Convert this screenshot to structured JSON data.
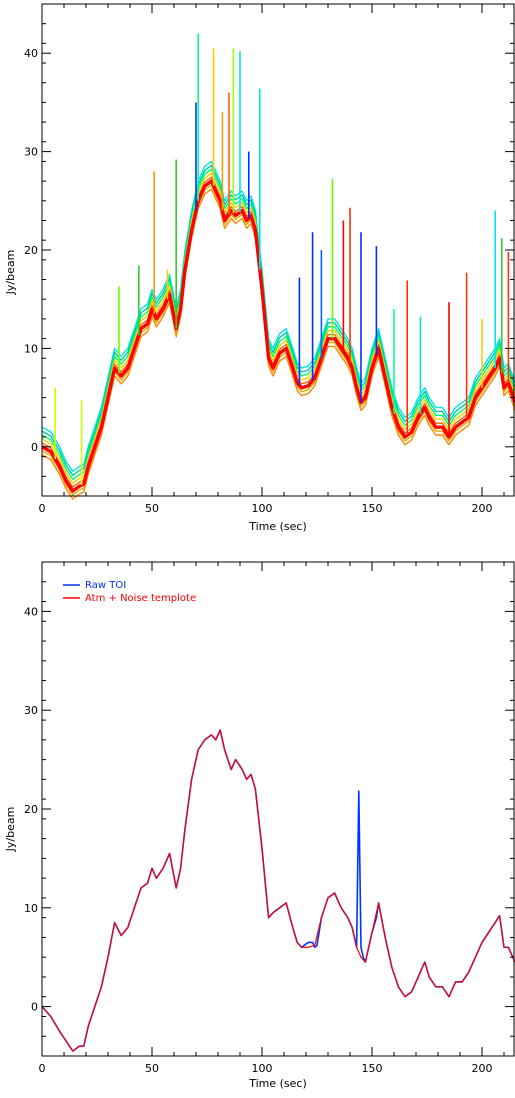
{
  "chart_data": [
    {
      "type": "line",
      "title": "",
      "xlabel": "Time (sec)",
      "ylabel": "Jy/beam",
      "xlim": [
        0,
        215
      ],
      "ylim": [
        -5,
        45
      ],
      "x_ticks": [
        0,
        50,
        100,
        150,
        200
      ],
      "y_ticks": [
        0,
        10,
        20,
        30,
        40
      ],
      "x_tick_labels": [
        "0",
        "50",
        "100",
        "150",
        "200"
      ],
      "y_tick_labels": [
        "0",
        "10",
        "20",
        "30",
        "40"
      ],
      "grid": false,
      "legend": "none",
      "baseline": [
        [
          0,
          0
        ],
        [
          4,
          -0.5
        ],
        [
          8,
          -2
        ],
        [
          11,
          -3.5
        ],
        [
          14,
          -4.5
        ],
        [
          17,
          -4
        ],
        [
          19,
          -3.8
        ],
        [
          21,
          -2
        ],
        [
          24,
          0
        ],
        [
          27,
          2
        ],
        [
          30,
          5
        ],
        [
          33,
          8
        ],
        [
          36,
          7.2
        ],
        [
          39,
          8
        ],
        [
          42,
          10
        ],
        [
          45,
          12
        ],
        [
          48,
          12.5
        ],
        [
          50,
          14
        ],
        [
          52,
          13
        ],
        [
          55,
          14
        ],
        [
          58,
          15.5
        ],
        [
          61,
          12
        ],
        [
          63,
          14
        ],
        [
          65,
          18
        ],
        [
          68,
          22
        ],
        [
          71,
          25
        ],
        [
          74,
          26.5
        ],
        [
          77,
          27
        ],
        [
          79,
          26
        ],
        [
          81,
          25
        ],
        [
          83,
          23
        ],
        [
          86,
          24
        ],
        [
          88,
          23.5
        ],
        [
          91,
          24
        ],
        [
          93,
          23
        ],
        [
          95,
          23.5
        ],
        [
          97,
          22
        ],
        [
          100,
          16
        ],
        [
          103,
          9
        ],
        [
          105,
          8
        ],
        [
          108,
          9.5
        ],
        [
          111,
          10
        ],
        [
          114,
          8
        ],
        [
          116,
          6.5
        ],
        [
          118,
          6
        ],
        [
          121,
          6.2
        ],
        [
          124,
          7
        ],
        [
          127,
          9
        ],
        [
          130,
          11
        ],
        [
          133,
          11
        ],
        [
          136,
          10
        ],
        [
          139,
          9
        ],
        [
          141,
          8
        ],
        [
          143,
          6
        ],
        [
          145,
          4.5
        ],
        [
          147,
          5
        ],
        [
          150,
          8
        ],
        [
          153,
          10
        ],
        [
          156,
          7
        ],
        [
          159,
          4
        ],
        [
          162,
          2
        ],
        [
          165,
          1
        ],
        [
          168,
          1.5
        ],
        [
          171,
          3
        ],
        [
          174,
          4
        ],
        [
          176,
          3
        ],
        [
          179,
          2
        ],
        [
          182,
          2
        ],
        [
          185,
          1
        ],
        [
          188,
          2
        ],
        [
          191,
          2.5
        ],
        [
          194,
          3
        ],
        [
          197,
          5
        ],
        [
          200,
          6
        ],
        [
          203,
          7
        ],
        [
          206,
          8
        ],
        [
          208,
          9
        ],
        [
          210,
          6
        ],
        [
          212,
          6.5
        ],
        [
          215,
          4.5
        ]
      ],
      "band_offsets": [
        0,
        0.4,
        0.8,
        1.2,
        1.6,
        2.0,
        -0.4,
        -0.8
      ],
      "band_colors": [
        "#ff0000",
        "#ff6600",
        "#ffcc00",
        "#00ff66",
        "#00cc99",
        "#00e5e5",
        "#e6a800",
        "#ff8800"
      ],
      "spikes": [
        {
          "x": 6,
          "y": 6,
          "color": "#ccff00"
        },
        {
          "x": 18,
          "y": 4.7,
          "color": "#ccff00"
        },
        {
          "x": 35,
          "y": 16.3,
          "color": "#66ff00"
        },
        {
          "x": 44,
          "y": 18.4,
          "color": "#33cc33"
        },
        {
          "x": 51,
          "y": 28,
          "color": "#ff9900"
        },
        {
          "x": 57,
          "y": 18,
          "color": "#ffcc00"
        },
        {
          "x": 61,
          "y": 29.2,
          "color": "#33cc33"
        },
        {
          "x": 70,
          "y": 35,
          "color": "#0033ff"
        },
        {
          "x": 71,
          "y": 42,
          "color": "#00ff99"
        },
        {
          "x": 78,
          "y": 40.5,
          "color": "#ffcc00"
        },
        {
          "x": 82,
          "y": 34,
          "color": "#ff9900"
        },
        {
          "x": 85,
          "y": 36,
          "color": "#ff6600"
        },
        {
          "x": 87,
          "y": 40.5,
          "color": "#99ff00"
        },
        {
          "x": 90,
          "y": 40.2,
          "color": "#00e5e5"
        },
        {
          "x": 94,
          "y": 30,
          "color": "#0033ff"
        },
        {
          "x": 99,
          "y": 36.4,
          "color": "#00e5e5"
        },
        {
          "x": 117,
          "y": 17.2,
          "color": "#0033ff"
        },
        {
          "x": 123,
          "y": 21.8,
          "color": "#0033ff"
        },
        {
          "x": 127,
          "y": 20,
          "color": "#0066ff"
        },
        {
          "x": 132,
          "y": 27.2,
          "color": "#66ff00"
        },
        {
          "x": 137,
          "y": 23,
          "color": "#ff0000"
        },
        {
          "x": 140,
          "y": 24.3,
          "color": "#ff3300"
        },
        {
          "x": 145,
          "y": 21.8,
          "color": "#0033ff"
        },
        {
          "x": 152,
          "y": 20.4,
          "color": "#0033ff"
        },
        {
          "x": 160,
          "y": 14,
          "color": "#00ff99"
        },
        {
          "x": 166,
          "y": 16.9,
          "color": "#ff3300"
        },
        {
          "x": 172,
          "y": 13.2,
          "color": "#00e5e5"
        },
        {
          "x": 185,
          "y": 14.7,
          "color": "#ff0000"
        },
        {
          "x": 193,
          "y": 17.7,
          "color": "#ff3300"
        },
        {
          "x": 200,
          "y": 13,
          "color": "#ffcc00"
        },
        {
          "x": 206,
          "y": 24,
          "color": "#00e5e5"
        },
        {
          "x": 209,
          "y": 21.2,
          "color": "#33cc33"
        },
        {
          "x": 212,
          "y": 19.8,
          "color": "#ff3300"
        }
      ]
    },
    {
      "type": "line",
      "title": "",
      "xlabel": "Time (sec)",
      "ylabel": "Jy/beam",
      "xlim": [
        0,
        215
      ],
      "ylim": [
        -5,
        45
      ],
      "x_ticks": [
        0,
        50,
        100,
        150,
        200
      ],
      "y_ticks": [
        0,
        10,
        20,
        30,
        40
      ],
      "x_tick_labels": [
        "0",
        "50",
        "100",
        "150",
        "200"
      ],
      "y_tick_labels": [
        "0",
        "10",
        "20",
        "30",
        "40"
      ],
      "grid": false,
      "legend": "top-left",
      "series": [
        {
          "name": "Raw TOI",
          "color": "#0033ff",
          "x": [
            0,
            4,
            8,
            11,
            14,
            17,
            19,
            21,
            24,
            27,
            30,
            33,
            36,
            39,
            42,
            45,
            48,
            50,
            52,
            55,
            58,
            61,
            63,
            65,
            68,
            71,
            74,
            77,
            79,
            81,
            83,
            86,
            88,
            91,
            93,
            95,
            97,
            100,
            103,
            105,
            108,
            111,
            114,
            116,
            118,
            121,
            123,
            124,
            125,
            127,
            130,
            133,
            136,
            139,
            141,
            143,
            144,
            145,
            146,
            147,
            150,
            152,
            153,
            156,
            159,
            162,
            165,
            168,
            171,
            174,
            176,
            179,
            182,
            185,
            188,
            191,
            194,
            197,
            200,
            203,
            206,
            208,
            210,
            212,
            215
          ],
          "y": [
            0,
            -1,
            -2.5,
            -3.5,
            -4.5,
            -4,
            -4,
            -2,
            0,
            2,
            5,
            8.5,
            7.2,
            8,
            10,
            12,
            12.5,
            14,
            13,
            14,
            15.5,
            12,
            14,
            18,
            23,
            26,
            27,
            27.5,
            27,
            28,
            26,
            24,
            25,
            24,
            23,
            23.5,
            22,
            16,
            9,
            9.5,
            10,
            10.5,
            8,
            6.5,
            6,
            6.5,
            6.5,
            6,
            6.2,
            9,
            11,
            11.5,
            10,
            9,
            8,
            6,
            21.8,
            6,
            5,
            4.5,
            7.5,
            9,
            10.5,
            7,
            4,
            2,
            1,
            1.5,
            3,
            4.5,
            3,
            2,
            2,
            1,
            2.5,
            2.5,
            3.5,
            5,
            6.5,
            7.5,
            8.5,
            9.2,
            6,
            6,
            4.5
          ]
        },
        {
          "name": "Atm + Noise templote",
          "color": "#ff0000",
          "x": [
            0,
            4,
            8,
            11,
            14,
            17,
            19,
            21,
            24,
            27,
            30,
            33,
            36,
            39,
            42,
            45,
            48,
            50,
            52,
            55,
            58,
            61,
            63,
            65,
            68,
            71,
            74,
            77,
            79,
            81,
            83,
            86,
            88,
            91,
            93,
            95,
            97,
            100,
            103,
            105,
            108,
            111,
            114,
            116,
            118,
            121,
            124,
            127,
            130,
            133,
            136,
            139,
            141,
            143,
            145,
            147,
            150,
            153,
            156,
            159,
            162,
            165,
            168,
            171,
            174,
            176,
            179,
            182,
            185,
            188,
            191,
            194,
            197,
            200,
            203,
            206,
            208,
            210,
            212,
            215
          ],
          "y": [
            0,
            -1,
            -2.5,
            -3.5,
            -4.5,
            -4,
            -4,
            -2,
            0,
            2,
            5,
            8.5,
            7.2,
            8,
            10,
            12,
            12.5,
            14,
            13,
            14,
            15.5,
            12,
            14,
            18,
            23,
            26,
            27,
            27.5,
            27,
            28,
            26,
            24,
            25,
            24,
            23,
            23.5,
            22,
            16,
            9,
            9.5,
            10,
            10.5,
            8,
            6.5,
            6,
            6,
            6.2,
            9,
            11,
            11.5,
            10,
            9,
            8,
            6,
            5,
            4.5,
            7.5,
            10.5,
            7,
            4,
            2,
            1,
            1.5,
            3,
            4.5,
            3,
            2,
            2,
            1,
            2.5,
            2.5,
            3.5,
            5,
            6.5,
            7.5,
            8.5,
            9.2,
            6,
            6,
            4.5
          ]
        }
      ]
    }
  ]
}
